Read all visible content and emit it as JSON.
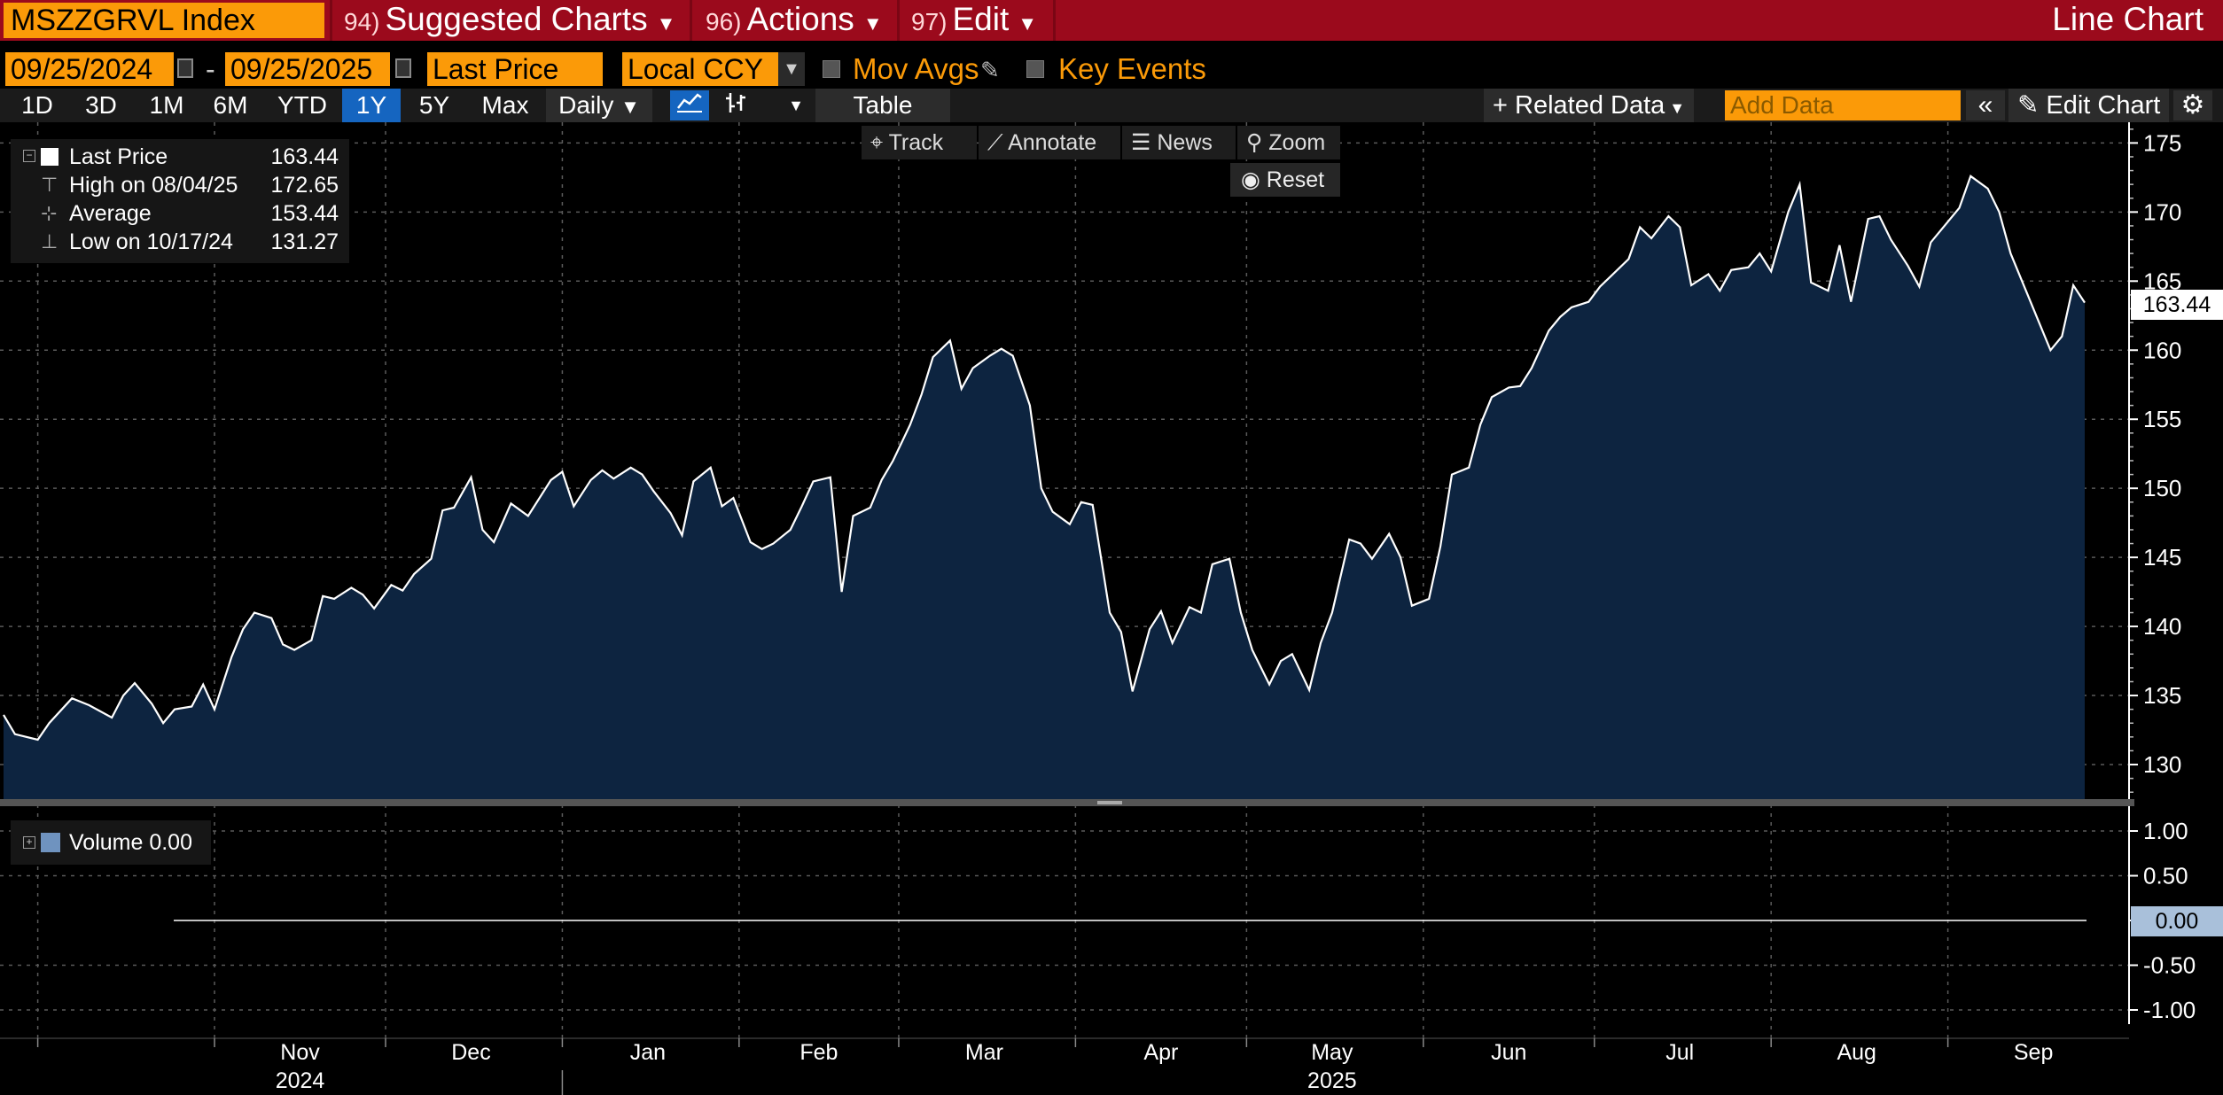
{
  "header": {
    "ticker": "MSZZGRVL Index",
    "menus": [
      {
        "num": "94)",
        "label": "Suggested Charts"
      },
      {
        "num": "96)",
        "label": "Actions"
      },
      {
        "num": "97)",
        "label": "Edit"
      }
    ],
    "chart_type": "Line Chart"
  },
  "controls": {
    "start_date": "09/25/2024",
    "end_date": "09/25/2025",
    "date_separator": "-",
    "field": "Last Price",
    "currency": "Local CCY",
    "mov_avgs": "Mov Avgs",
    "key_events": "Key Events"
  },
  "periods": [
    "1D",
    "3D",
    "1M",
    "6M",
    "YTD",
    "1Y",
    "5Y",
    "Max"
  ],
  "active_period": "1Y",
  "frequency": "Daily",
  "toolbar": {
    "table": "Table",
    "related_data": "Related Data",
    "add_data_placeholder": "Add Data",
    "edit_chart": "Edit Chart",
    "track": "Track",
    "annotate": "Annotate",
    "news": "News",
    "zoom": "Zoom",
    "reset": "Reset"
  },
  "legend": {
    "last_price_label": "Last Price",
    "last_price_value": "163.44",
    "high_label": "High on 08/04/25",
    "high_value": "172.65",
    "average_label": "Average",
    "average_value": "153.44",
    "low_label": "Low on 10/17/24",
    "low_value": "131.27",
    "volume_label": "Volume 0.00"
  },
  "last_value_tag": "163.44",
  "volume_value_tag": "0.00",
  "colors": {
    "header_red": "#9b0a1c",
    "orange": "#fb9a08",
    "active_blue": "#1565c0",
    "area_fill": "#0d2440",
    "line": "#ffffff"
  },
  "chart_data": {
    "type": "area",
    "y_ticks": [
      130,
      135,
      140,
      145,
      150,
      155,
      160,
      165,
      170,
      175
    ],
    "y_tick_labels": [
      "130",
      "135",
      "140",
      "145",
      "150",
      "155",
      "160",
      "165",
      "170",
      "175"
    ],
    "ylim": [
      127.5,
      176.5
    ],
    "x_months": [
      "Nov",
      "Dec",
      "Jan",
      "Feb",
      "Mar",
      "Apr",
      "May",
      "Jun",
      "Jul",
      "Aug",
      "Sep"
    ],
    "x_years": [
      "2024",
      "2025"
    ],
    "grid": true,
    "start": "2024-09-25",
    "end": "2025-09-25",
    "series": [
      {
        "name": "Last Price",
        "points": [
          [
            "2024-09-25",
            133.6
          ],
          [
            "2024-09-27",
            132.2
          ],
          [
            "2024-10-01",
            131.8
          ],
          [
            "2024-10-03",
            133.0
          ],
          [
            "2024-10-07",
            134.8
          ],
          [
            "2024-10-10",
            134.3
          ],
          [
            "2024-10-14",
            133.4
          ],
          [
            "2024-10-16",
            135.0
          ],
          [
            "2024-10-18",
            135.9
          ],
          [
            "2024-10-21",
            134.4
          ],
          [
            "2024-10-23",
            133.0
          ],
          [
            "2024-10-25",
            134.0
          ],
          [
            "2024-10-28",
            134.2
          ],
          [
            "2024-10-30",
            135.8
          ],
          [
            "2024-11-01",
            134.0
          ],
          [
            "2024-11-04",
            137.8
          ],
          [
            "2024-11-06",
            139.8
          ],
          [
            "2024-11-08",
            141.0
          ],
          [
            "2024-11-11",
            140.6
          ],
          [
            "2024-11-13",
            138.7
          ],
          [
            "2024-11-15",
            138.3
          ],
          [
            "2024-11-18",
            139.0
          ],
          [
            "2024-11-20",
            142.2
          ],
          [
            "2024-11-22",
            142.0
          ],
          [
            "2024-11-25",
            142.8
          ],
          [
            "2024-11-27",
            142.3
          ],
          [
            "2024-11-29",
            141.3
          ],
          [
            "2024-12-02",
            143.0
          ],
          [
            "2024-12-04",
            142.6
          ],
          [
            "2024-12-06",
            143.8
          ],
          [
            "2024-12-09",
            144.9
          ],
          [
            "2024-12-11",
            148.4
          ],
          [
            "2024-12-13",
            148.6
          ],
          [
            "2024-12-16",
            150.8
          ],
          [
            "2024-12-18",
            147.0
          ],
          [
            "2024-12-20",
            146.1
          ],
          [
            "2024-12-23",
            148.9
          ],
          [
            "2024-12-26",
            148.0
          ],
          [
            "2024-12-30",
            150.6
          ],
          [
            "2025-01-01",
            151.2
          ],
          [
            "2025-01-03",
            148.7
          ],
          [
            "2025-01-06",
            150.6
          ],
          [
            "2025-01-08",
            151.3
          ],
          [
            "2025-01-10",
            150.7
          ],
          [
            "2025-01-13",
            151.5
          ],
          [
            "2025-01-15",
            151.0
          ],
          [
            "2025-01-17",
            149.8
          ],
          [
            "2025-01-20",
            148.2
          ],
          [
            "2025-01-22",
            146.6
          ],
          [
            "2025-01-24",
            150.5
          ],
          [
            "2025-01-27",
            151.5
          ],
          [
            "2025-01-29",
            148.7
          ],
          [
            "2025-01-31",
            149.3
          ],
          [
            "2025-02-03",
            146.1
          ],
          [
            "2025-02-05",
            145.6
          ],
          [
            "2025-02-07",
            146.0
          ],
          [
            "2025-02-10",
            147.0
          ],
          [
            "2025-02-12",
            148.7
          ],
          [
            "2025-02-14",
            150.5
          ],
          [
            "2025-02-17",
            150.8
          ],
          [
            "2025-02-19",
            142.5
          ],
          [
            "2025-02-21",
            148.0
          ],
          [
            "2025-02-24",
            148.6
          ],
          [
            "2025-02-26",
            150.6
          ],
          [
            "2025-02-28",
            152.0
          ],
          [
            "2025-03-03",
            154.6
          ],
          [
            "2025-03-05",
            156.8
          ],
          [
            "2025-03-07",
            159.5
          ],
          [
            "2025-03-10",
            160.7
          ],
          [
            "2025-03-12",
            157.2
          ],
          [
            "2025-03-14",
            158.7
          ],
          [
            "2025-03-17",
            159.6
          ],
          [
            "2025-03-19",
            160.1
          ],
          [
            "2025-03-21",
            159.6
          ],
          [
            "2025-03-24",
            156.0
          ],
          [
            "2025-03-26",
            150.0
          ],
          [
            "2025-03-28",
            148.3
          ],
          [
            "2025-03-31",
            147.4
          ],
          [
            "2025-04-02",
            149.0
          ],
          [
            "2025-04-04",
            148.8
          ],
          [
            "2025-04-07",
            141.0
          ],
          [
            "2025-04-09",
            139.6
          ],
          [
            "2025-04-11",
            135.3
          ],
          [
            "2025-04-14",
            139.8
          ],
          [
            "2025-04-16",
            141.1
          ],
          [
            "2025-04-18",
            138.8
          ],
          [
            "2025-04-21",
            141.4
          ],
          [
            "2025-04-23",
            141.0
          ],
          [
            "2025-04-25",
            144.5
          ],
          [
            "2025-04-28",
            144.9
          ],
          [
            "2025-04-30",
            141.0
          ],
          [
            "2025-05-02",
            138.3
          ],
          [
            "2025-05-05",
            135.8
          ],
          [
            "2025-05-07",
            137.5
          ],
          [
            "2025-05-09",
            138.0
          ],
          [
            "2025-05-12",
            135.4
          ],
          [
            "2025-05-14",
            138.8
          ],
          [
            "2025-05-16",
            141.0
          ],
          [
            "2025-05-19",
            146.3
          ],
          [
            "2025-05-21",
            146.0
          ],
          [
            "2025-05-23",
            144.9
          ],
          [
            "2025-05-26",
            146.7
          ],
          [
            "2025-05-28",
            145.0
          ],
          [
            "2025-05-30",
            141.5
          ],
          [
            "2025-06-02",
            142.0
          ],
          [
            "2025-06-04",
            145.8
          ],
          [
            "2025-06-06",
            151.0
          ],
          [
            "2025-06-09",
            151.5
          ],
          [
            "2025-06-11",
            154.6
          ],
          [
            "2025-06-13",
            156.6
          ],
          [
            "2025-06-16",
            157.3
          ],
          [
            "2025-06-18",
            157.4
          ],
          [
            "2025-06-20",
            158.7
          ],
          [
            "2025-06-23",
            161.4
          ],
          [
            "2025-06-25",
            162.4
          ],
          [
            "2025-06-27",
            163.1
          ],
          [
            "2025-06-30",
            163.5
          ],
          [
            "2025-07-02",
            164.6
          ],
          [
            "2025-07-04",
            165.4
          ],
          [
            "2025-07-07",
            166.6
          ],
          [
            "2025-07-09",
            168.9
          ],
          [
            "2025-07-11",
            168.1
          ],
          [
            "2025-07-14",
            169.7
          ],
          [
            "2025-07-16",
            168.9
          ],
          [
            "2025-07-18",
            164.7
          ],
          [
            "2025-07-21",
            165.5
          ],
          [
            "2025-07-23",
            164.3
          ],
          [
            "2025-07-25",
            165.8
          ],
          [
            "2025-07-28",
            166.0
          ],
          [
            "2025-07-30",
            167.0
          ],
          [
            "2025-08-01",
            165.7
          ],
          [
            "2025-08-04",
            170.0
          ],
          [
            "2025-08-06",
            172.0
          ],
          [
            "2025-08-08",
            164.9
          ],
          [
            "2025-08-11",
            164.3
          ],
          [
            "2025-08-13",
            167.6
          ],
          [
            "2025-08-15",
            163.5
          ],
          [
            "2025-08-18",
            169.5
          ],
          [
            "2025-08-20",
            169.7
          ],
          [
            "2025-08-22",
            168.0
          ],
          [
            "2025-08-25",
            166.1
          ],
          [
            "2025-08-27",
            164.6
          ],
          [
            "2025-08-29",
            167.8
          ],
          [
            "2025-09-01",
            169.3
          ],
          [
            "2025-09-03",
            170.3
          ],
          [
            "2025-09-05",
            172.6
          ],
          [
            "2025-09-08",
            171.7
          ],
          [
            "2025-09-10",
            170.0
          ],
          [
            "2025-09-12",
            167.0
          ],
          [
            "2025-09-15",
            164.0
          ],
          [
            "2025-09-17",
            162.0
          ],
          [
            "2025-09-19",
            160.0
          ],
          [
            "2025-09-21",
            161.0
          ],
          [
            "2025-09-23",
            164.7
          ],
          [
            "2025-09-25",
            163.44
          ]
        ]
      }
    ],
    "volume": {
      "name": "Volume",
      "value": 0.0,
      "y_ticks": [
        1.0,
        0.5,
        0.0,
        -0.5,
        -1.0
      ],
      "y_tick_labels": [
        "1.00",
        "0.50",
        "0.00",
        "-0.50",
        "-1.00"
      ]
    }
  }
}
